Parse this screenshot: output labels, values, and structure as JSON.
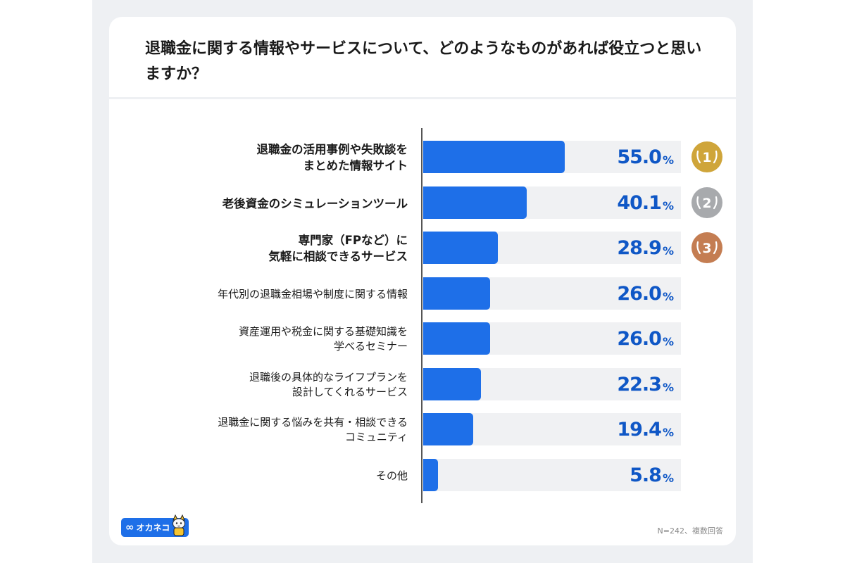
{
  "title": "退職金に関する情報やサービスについて、どのようなものがあれば役立つと思いますか？",
  "chart_data": {
    "type": "bar",
    "orientation": "horizontal",
    "title": "退職金に関する情報やサービスについて、どのようなものがあれば役立つと思いますか？",
    "categories": [
      "退職金の活用事例や失敗談を\nまとめた情報サイト",
      "老後資金のシミュレーションツール",
      "専門家（FPなど）に\n気軽に相談できるサービス",
      "年代別の退職金相場や制度に関する情報",
      "資産運用や税金に関する基礎知識を\n学べるセミナー",
      "退職後の具体的なライフプランを\n設計してくれるサービス",
      "退職金に関する悩みを共有・相談できる\nコミュニティ",
      "その他"
    ],
    "values": [
      55.0,
      40.1,
      28.9,
      26.0,
      26.0,
      22.3,
      19.4,
      5.8
    ],
    "value_labels": [
      "55.0",
      "40.1",
      "28.9",
      "26.0",
      "26.0",
      "22.3",
      "19.4",
      "5.8"
    ],
    "unit": "%",
    "xlim": [
      0,
      100
    ],
    "ranks": [
      "1",
      "2",
      "3"
    ],
    "rank_colors": [
      "#cfa53a",
      "#a8aaad",
      "#c47d52"
    ],
    "bar_color": "#1e6fe8",
    "track_color": "#f0f1f3",
    "value_color": "#0f57c6",
    "grid": false,
    "legend": "none"
  },
  "footnote": "N=242、複数回答",
  "logo": {
    "text": "オカネコ",
    "icon": "infinity-icon",
    "mascot": "cat-mascot-icon"
  }
}
